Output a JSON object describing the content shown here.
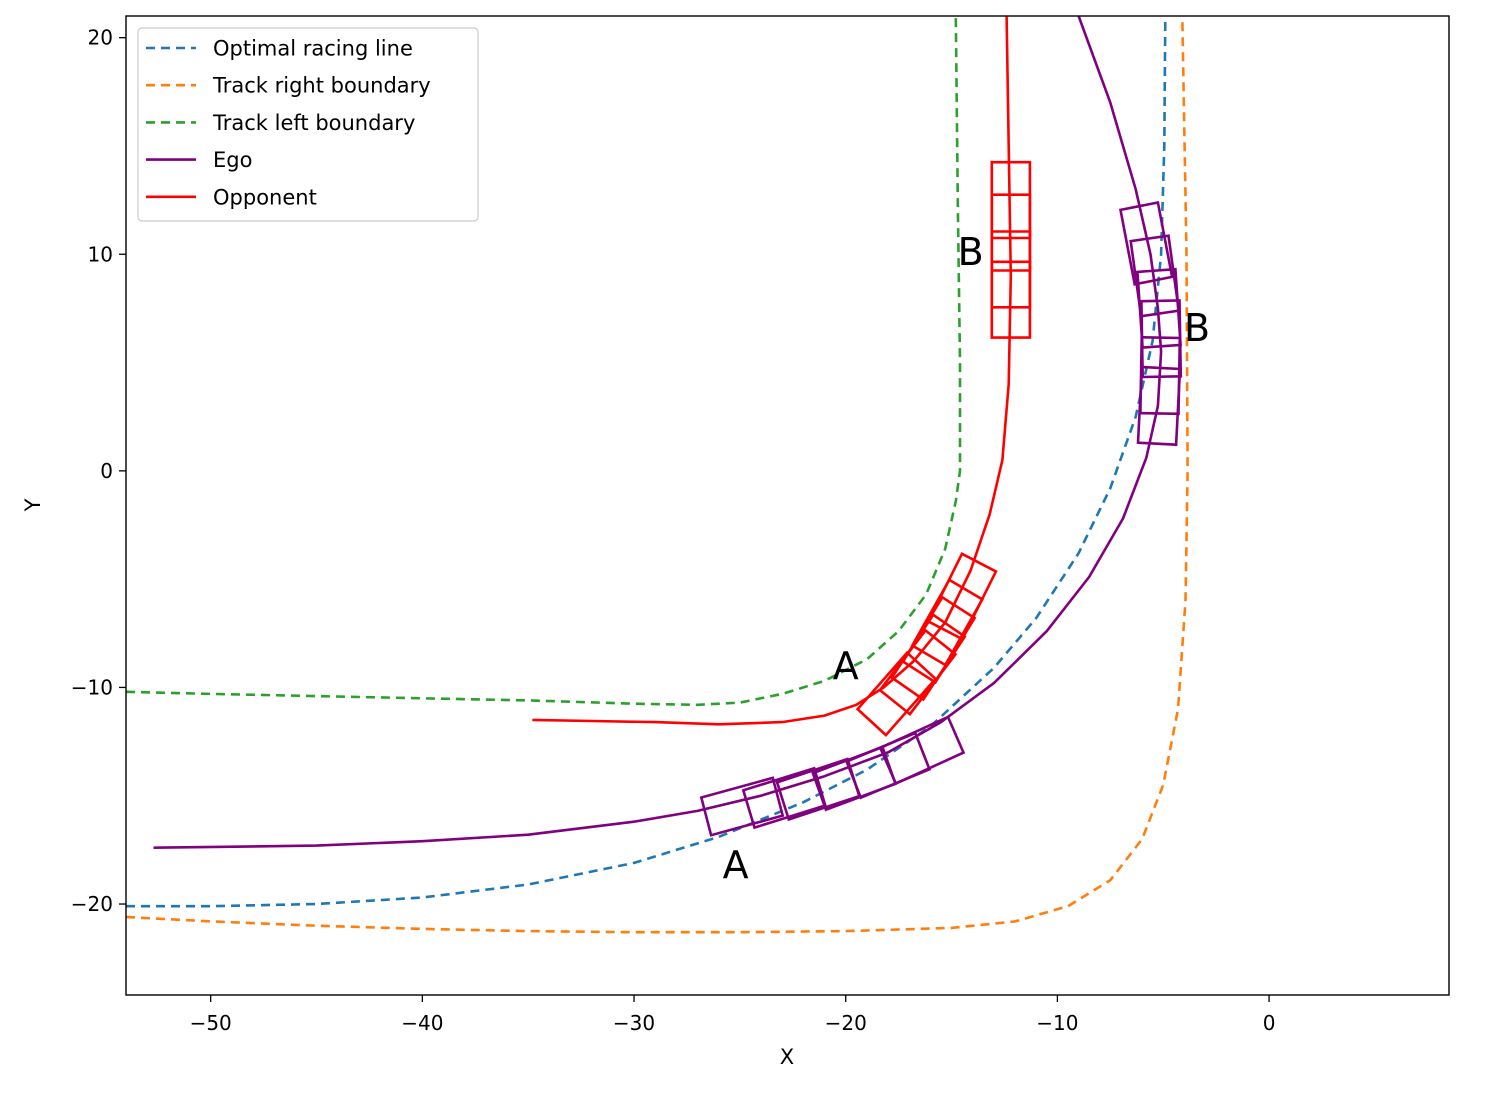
{
  "chart_data": {
    "type": "line",
    "title": "",
    "xlabel": "X",
    "ylabel": "Y",
    "xlim": [
      -54,
      8.5
    ],
    "ylim": [
      -24.2,
      21
    ],
    "xticks": [
      -50,
      -40,
      -30,
      -20,
      -10,
      0
    ],
    "yticks": [
      -20,
      -10,
      0,
      10,
      20
    ],
    "xtick_labels": [
      "−50",
      "−40",
      "−30",
      "−20",
      "−10",
      "0"
    ],
    "ytick_labels": [
      "−20",
      "−10",
      "0",
      "10",
      "20"
    ],
    "grid": false,
    "legend": {
      "position": "top-left"
    },
    "series": [
      {
        "name": "Optimal racing line",
        "style": "dashed",
        "color": "#1f77b4",
        "x": [
          -54,
          -50,
          -45,
          -40,
          -35,
          -30,
          -26,
          -22,
          -19,
          -16,
          -13,
          -11,
          -9,
          -7.5,
          -6.3,
          -5.5,
          -5.1,
          -4.95,
          -4.9
        ],
        "y": [
          -20.1,
          -20.1,
          -20.0,
          -19.7,
          -19.1,
          -18.1,
          -16.9,
          -15.3,
          -13.8,
          -11.8,
          -9.1,
          -6.8,
          -3.8,
          -0.8,
          2.5,
          6.0,
          10.0,
          15.0,
          21.0
        ]
      },
      {
        "name": "Track right boundary",
        "style": "dashed",
        "color": "#ff7f0e",
        "x": [
          -54,
          -50,
          -45,
          -40,
          -35,
          -30,
          -25,
          -20,
          -15,
          -12,
          -9.5,
          -7.5,
          -6,
          -5,
          -4.3,
          -3.95,
          -3.85,
          -3.9,
          -4.1
        ],
        "y": [
          -20.6,
          -20.8,
          -21.0,
          -21.15,
          -21.25,
          -21.3,
          -21.3,
          -21.25,
          -21.1,
          -20.8,
          -20.1,
          -18.9,
          -17.0,
          -14.5,
          -11.0,
          -6.0,
          0.0,
          10.0,
          21.0
        ]
      },
      {
        "name": "Track left boundary",
        "style": "dashed",
        "color": "#2ca02c",
        "x": [
          -54,
          -50,
          -45,
          -40,
          -35,
          -30,
          -27,
          -25,
          -23,
          -21,
          -19,
          -17.5,
          -16.2,
          -15.3,
          -14.8,
          -14.6,
          -14.6,
          -14.7,
          -14.8
        ],
        "y": [
          -10.2,
          -10.3,
          -10.4,
          -10.5,
          -10.6,
          -10.75,
          -10.8,
          -10.7,
          -10.3,
          -9.7,
          -8.7,
          -7.4,
          -5.7,
          -3.6,
          -1.4,
          0.0,
          5.0,
          12.0,
          21.0
        ]
      },
      {
        "name": "Ego",
        "style": "solid",
        "color": "#800080",
        "x": [
          -52.7,
          -45,
          -40,
          -35,
          -30,
          -27,
          -24,
          -21,
          -18,
          -15.5,
          -13,
          -10.5,
          -8.5,
          -6.9,
          -5.8,
          -5.25,
          -5.1,
          -5.25,
          -5.6,
          -6.3,
          -7.5,
          -9.0
        ],
        "y": [
          -17.4,
          -17.3,
          -17.1,
          -16.8,
          -16.2,
          -15.7,
          -15.0,
          -14.1,
          -13.0,
          -11.6,
          -9.8,
          -7.4,
          -4.9,
          -2.2,
          0.6,
          3.0,
          5.5,
          7.5,
          10.0,
          13.0,
          17.0,
          21.0
        ]
      },
      {
        "name": "Opponent",
        "style": "solid",
        "color": "#ff0000",
        "x": [
          -34.8,
          -32,
          -29,
          -26,
          -23,
          -21,
          -19.5,
          -18.2,
          -16.8,
          -15.3,
          -14.1,
          -13.2,
          -12.6,
          -12.3,
          -12.2,
          -12.3,
          -12.4
        ],
        "y": [
          -11.5,
          -11.55,
          -11.6,
          -11.7,
          -11.6,
          -11.3,
          -10.8,
          -10.0,
          -8.8,
          -7.0,
          -4.6,
          -2.0,
          0.5,
          4.0,
          9.0,
          15.0,
          21.0
        ]
      }
    ],
    "vehicle_boxes": {
      "ego": [
        {
          "x": -24.9,
          "y": -15.5,
          "heading_deg": 15
        },
        {
          "x": -22.9,
          "y": -15.1,
          "heading_deg": 17
        },
        {
          "x": -21.3,
          "y": -14.7,
          "heading_deg": 18
        },
        {
          "x": -19.6,
          "y": -14.2,
          "heading_deg": 20
        },
        {
          "x": -18.0,
          "y": -13.6,
          "heading_deg": 22
        },
        {
          "x": -16.4,
          "y": -12.9,
          "heading_deg": 24
        },
        {
          "x": -5.8,
          "y": 10.5,
          "heading_deg": 101
        },
        {
          "x": -5.4,
          "y": 9.0,
          "heading_deg": 98
        },
        {
          "x": -5.2,
          "y": 7.5,
          "heading_deg": 94
        },
        {
          "x": -5.1,
          "y": 6.1,
          "heading_deg": 91
        },
        {
          "x": -5.15,
          "y": 4.4,
          "heading_deg": 89
        },
        {
          "x": -5.2,
          "y": 3.0,
          "heading_deg": 87
        }
      ],
      "opponent": [
        {
          "x": -17.6,
          "y": -10.3,
          "heading_deg": 48
        },
        {
          "x": -16.6,
          "y": -9.3,
          "heading_deg": 52
        },
        {
          "x": -16.1,
          "y": -8.6,
          "heading_deg": 56
        },
        {
          "x": -15.6,
          "y": -7.8,
          "heading_deg": 58
        },
        {
          "x": -15.2,
          "y": -7.0,
          "heading_deg": 60
        },
        {
          "x": -14.5,
          "y": -5.8,
          "heading_deg": 63
        },
        {
          "x": -12.2,
          "y": 12.5,
          "heading_deg": 90
        },
        {
          "x": -12.2,
          "y": 11.0,
          "heading_deg": 90
        },
        {
          "x": -12.2,
          "y": 9.3,
          "heading_deg": 90
        },
        {
          "x": -12.2,
          "y": 7.9,
          "heading_deg": 90
        }
      ],
      "length": 3.5,
      "width": 1.8
    },
    "annotations": [
      {
        "text": "A",
        "x": -20.0,
        "y": -9.0
      },
      {
        "text": "A",
        "x": -25.2,
        "y": -18.2
      },
      {
        "text": "B",
        "x": -14.1,
        "y": 10.1
      },
      {
        "text": "B",
        "x": -3.4,
        "y": 6.6
      }
    ]
  }
}
